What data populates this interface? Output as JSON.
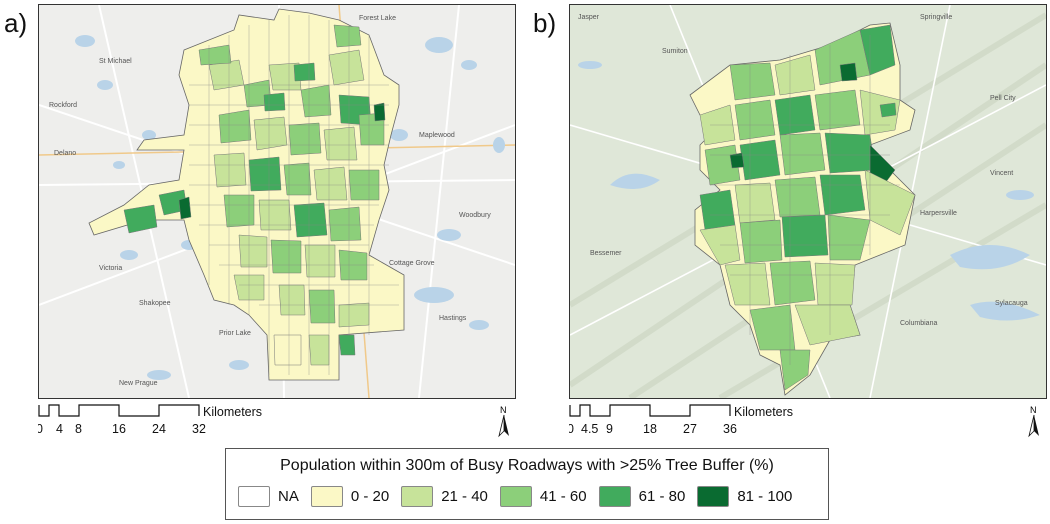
{
  "panels": [
    {
      "label": "a)",
      "scale_ticks": [
        "0",
        "4",
        "8",
        "16",
        "24",
        "32"
      ],
      "scale_unit": "Kilometers"
    },
    {
      "label": "b)",
      "scale_ticks": [
        "0",
        "4.5",
        "9",
        "18",
        "27",
        "36"
      ],
      "scale_unit": "Kilometers"
    }
  ],
  "north_label": "N",
  "legend": {
    "title": "Population within 300m of Busy Roadways with >25% Tree Buffer (%)",
    "items": [
      {
        "label": "NA",
        "color": "#ffffff"
      },
      {
        "label": "0 - 20",
        "color": "#fbf8c6"
      },
      {
        "label": "21 - 40",
        "color": "#c7e39a"
      },
      {
        "label": "41 - 60",
        "color": "#8ccf7a"
      },
      {
        "label": "61 - 80",
        "color": "#41ab5d"
      },
      {
        "label": "81 - 100",
        "color": "#0a6b31"
      }
    ]
  },
  "basemap": {
    "a_background": "#eeeeec",
    "b_background": "#dfe7d8",
    "water": "#b9d3e8"
  }
}
